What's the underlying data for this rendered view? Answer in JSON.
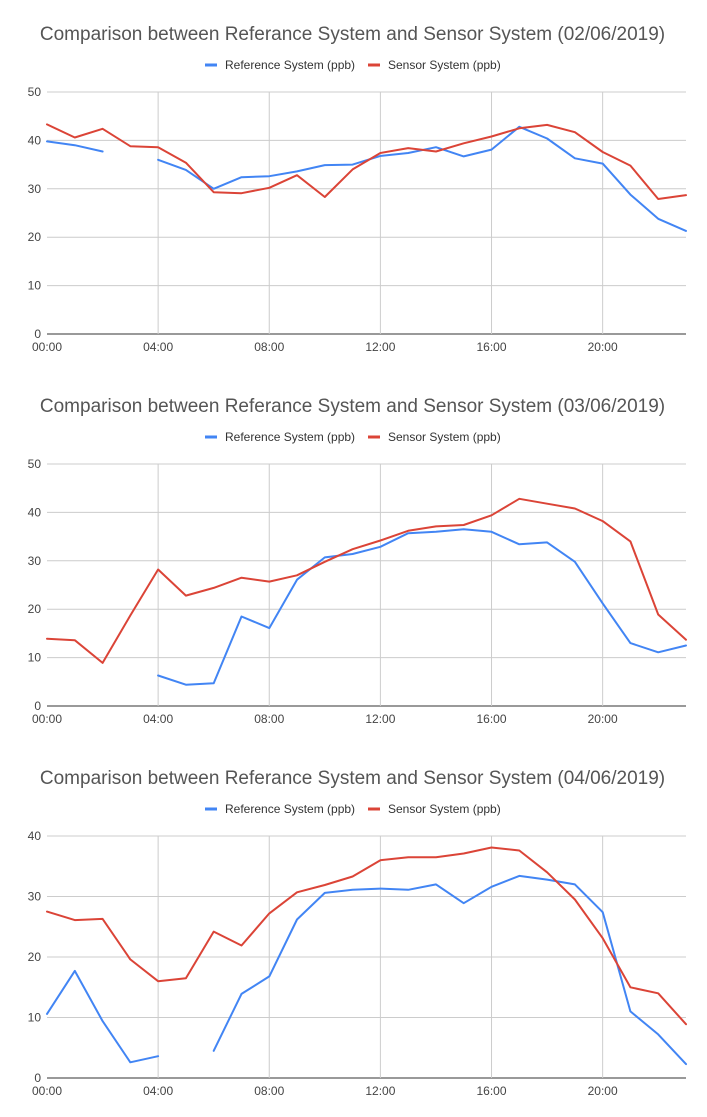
{
  "chart_data": [
    {
      "type": "line",
      "title": "Comparison  between Referance System and Sensor System (02/06/2019)",
      "xlabel": "",
      "ylabel": "",
      "ylim": [
        0,
        50
      ],
      "yticks": [
        0,
        10,
        20,
        30,
        40,
        50
      ],
      "x": [
        "00:00",
        "01:00",
        "02:00",
        "03:00",
        "04:00",
        "05:00",
        "06:00",
        "07:00",
        "08:00",
        "09:00",
        "10:00",
        "11:00",
        "12:00",
        "13:00",
        "14:00",
        "15:00",
        "16:00",
        "17:00",
        "18:00",
        "19:00",
        "20:00",
        "21:00",
        "22:00",
        "23:00"
      ],
      "xtick_labels": [
        "00:00",
        "04:00",
        "08:00",
        "12:00",
        "16:00",
        "20:00"
      ],
      "legend_position": "top",
      "grid": true,
      "series": [
        {
          "name": "Reference System (ppb)",
          "color": "#4285f4",
          "values": [
            39.8,
            39.0,
            37.7,
            null,
            36.0,
            33.9,
            30.0,
            32.4,
            32.6,
            33.6,
            34.9,
            35.0,
            36.8,
            37.4,
            38.6,
            36.7,
            38.1,
            42.8,
            40.4,
            36.3,
            35.2,
            28.8,
            23.8,
            21.3
          ]
        },
        {
          "name": "Sensor  System (ppb)",
          "color": "#db4437",
          "values": [
            43.3,
            40.6,
            42.4,
            38.8,
            38.6,
            35.4,
            29.3,
            29.1,
            30.2,
            32.8,
            28.3,
            34.0,
            37.4,
            38.4,
            37.7,
            39.4,
            40.8,
            42.5,
            43.2,
            41.7,
            37.6,
            34.8,
            27.9,
            28.7
          ]
        }
      ]
    },
    {
      "type": "line",
      "title": "Comparison  between Referance System and Sensor System (03/06/2019)",
      "xlabel": "",
      "ylabel": "",
      "ylim": [
        0,
        50
      ],
      "yticks": [
        0,
        10,
        20,
        30,
        40,
        50
      ],
      "x": [
        "00:00",
        "01:00",
        "02:00",
        "03:00",
        "04:00",
        "05:00",
        "06:00",
        "07:00",
        "08:00",
        "09:00",
        "10:00",
        "11:00",
        "12:00",
        "13:00",
        "14:00",
        "15:00",
        "16:00",
        "17:00",
        "18:00",
        "19:00",
        "20:00",
        "21:00",
        "22:00",
        "23:00"
      ],
      "xtick_labels": [
        "00:00",
        "04:00",
        "08:00",
        "12:00",
        "16:00",
        "20:00"
      ],
      "legend_position": "top",
      "grid": true,
      "series": [
        {
          "name": "Reference System (ppb)",
          "color": "#4285f4",
          "values": [
            null,
            null,
            null,
            null,
            6.3,
            4.4,
            4.7,
            18.5,
            16.1,
            26.1,
            30.7,
            31.4,
            32.9,
            35.7,
            36.0,
            36.5,
            36.0,
            33.4,
            33.8,
            29.8,
            21.2,
            13.0,
            11.1,
            12.5
          ]
        },
        {
          "name": "Sensor  System (ppb)",
          "color": "#db4437",
          "values": [
            13.9,
            13.6,
            8.9,
            18.7,
            28.2,
            22.8,
            24.4,
            26.5,
            25.7,
            27.0,
            29.8,
            32.4,
            34.2,
            36.2,
            37.1,
            37.4,
            39.4,
            42.8,
            41.8,
            40.8,
            38.2,
            34.0,
            18.9,
            13.7
          ]
        }
      ]
    },
    {
      "type": "line",
      "title": "Comparison between Referance System and Sensor System (04/06/2019)",
      "xlabel": "",
      "ylabel": "",
      "ylim": [
        0,
        40
      ],
      "yticks": [
        0,
        10,
        20,
        30,
        40
      ],
      "x": [
        "00:00",
        "01:00",
        "02:00",
        "03:00",
        "04:00",
        "05:00",
        "06:00",
        "07:00",
        "08:00",
        "09:00",
        "10:00",
        "11:00",
        "12:00",
        "13:00",
        "14:00",
        "15:00",
        "16:00",
        "17:00",
        "18:00",
        "19:00",
        "20:00",
        "21:00",
        "22:00",
        "23:00"
      ],
      "xtick_labels": [
        "00:00",
        "04:00",
        "08:00",
        "12:00",
        "16:00",
        "20:00"
      ],
      "legend_position": "top",
      "grid": true,
      "series": [
        {
          "name": "Reference System (ppb)",
          "color": "#4285f4",
          "values": [
            10.6,
            17.7,
            9.4,
            2.6,
            3.6,
            null,
            4.5,
            13.9,
            16.8,
            26.2,
            30.6,
            31.1,
            31.3,
            31.1,
            32.0,
            28.9,
            31.6,
            33.4,
            32.8,
            32.0,
            27.4,
            11.0,
            7.2,
            2.3
          ]
        },
        {
          "name": "Sensor  System (ppb)",
          "color": "#db4437",
          "values": [
            27.5,
            26.1,
            26.3,
            19.6,
            16.0,
            16.5,
            24.2,
            21.9,
            27.2,
            30.7,
            31.9,
            33.3,
            36.0,
            36.5,
            36.5,
            37.1,
            38.1,
            37.6,
            34.0,
            29.5,
            23.1,
            15.0,
            14.0,
            8.9
          ]
        }
      ]
    }
  ]
}
